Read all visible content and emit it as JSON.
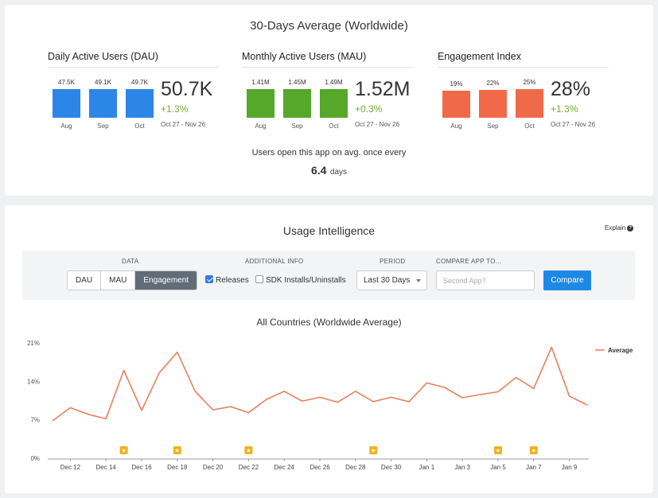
{
  "top": {
    "title": "30-Days Average (Worldwide)",
    "metrics": [
      {
        "title": "Daily Active Users (DAU)",
        "color": "#2b86e8",
        "bars": [
          {
            "label": "47.5K",
            "cat": "Aug",
            "value": 47.5
          },
          {
            "label": "49.1K",
            "cat": "Sep",
            "value": 49.1
          },
          {
            "label": "49.7K",
            "cat": "Oct",
            "value": 49.7
          }
        ],
        "value": "50.7K",
        "change": "+1.3%",
        "range": "Oct 27 - Nov 26"
      },
      {
        "title": "Monthly Active Users (MAU)",
        "color": "#55a82a",
        "bars": [
          {
            "label": "1.41M",
            "cat": "Aug",
            "value": 1.41
          },
          {
            "label": "1.45M",
            "cat": "Sep",
            "value": 1.45
          },
          {
            "label": "1.49M",
            "cat": "Oct",
            "value": 1.49
          }
        ],
        "value": "1.52M",
        "change": "+0.3%",
        "range": "Oct 27 - Nov 26"
      },
      {
        "title": "Engagement Index",
        "color": "#f06a4a",
        "bars": [
          {
            "label": "19%",
            "cat": "Aug",
            "value": 19
          },
          {
            "label": "22%",
            "cat": "Sep",
            "value": 22
          },
          {
            "label": "25%",
            "cat": "Oct",
            "value": 25
          }
        ],
        "value": "28%",
        "change": "+1.3%",
        "range": "Oct 27 - Nov 26"
      }
    ],
    "open_text": "Users open this app on avg. once every",
    "days_value": "6.4",
    "days_unit": "days"
  },
  "usage": {
    "title": "Usage Intelligence",
    "explain": "Explain",
    "filters": {
      "data_label": "DATA",
      "data_options": [
        "DAU",
        "MAU",
        "Engagement"
      ],
      "additional_label": "ADDITIONAL INFO",
      "releases_label": "Releases",
      "releases_checked": true,
      "sdk_label": "SDK Installs/Uninstalls",
      "sdk_checked": false,
      "period_label": "PERIOD",
      "period_value": "Last 30 Days",
      "compare_label": "COMPARE APP TO...",
      "compare_placeholder": "Second App?",
      "compare_button": "Compare"
    }
  },
  "chart_data": {
    "type": "line",
    "title": "All Countries (Worldwide Average)",
    "y_ticks": [
      "21%",
      "14%",
      "7%",
      "0%"
    ],
    "ylim": [
      0,
      21
    ],
    "x_tick_labels": [
      "Dec 12",
      "Dec 14",
      "Dec 16",
      "Dec 18",
      "Dec 20",
      "Dec 22",
      "Dec 24",
      "Dec 26",
      "Dec 28",
      "Dec 30",
      "Jan 1",
      "Jan 3",
      "Jan 5",
      "Jan 7",
      "Jan 9"
    ],
    "x_tick_index": [
      1,
      3,
      5,
      7,
      9,
      11,
      13,
      15,
      17,
      19,
      21,
      23,
      25,
      27,
      29
    ],
    "series": [
      {
        "name": "Average",
        "color": "#e8805f",
        "values": [
          6.8,
          9.2,
          8.0,
          7.2,
          16.0,
          8.7,
          15.6,
          19.3,
          12.2,
          8.8,
          9.4,
          8.3,
          10.7,
          12.2,
          10.4,
          11.1,
          10.2,
          12.2,
          10.3,
          11.1,
          10.3,
          13.7,
          12.9,
          11.0,
          11.6,
          12.1,
          14.7,
          12.7,
          20.2,
          11.3,
          9.7
        ]
      }
    ],
    "release_markers": [
      4,
      7,
      11,
      18,
      25,
      27
    ],
    "legend_position": "top-right"
  }
}
